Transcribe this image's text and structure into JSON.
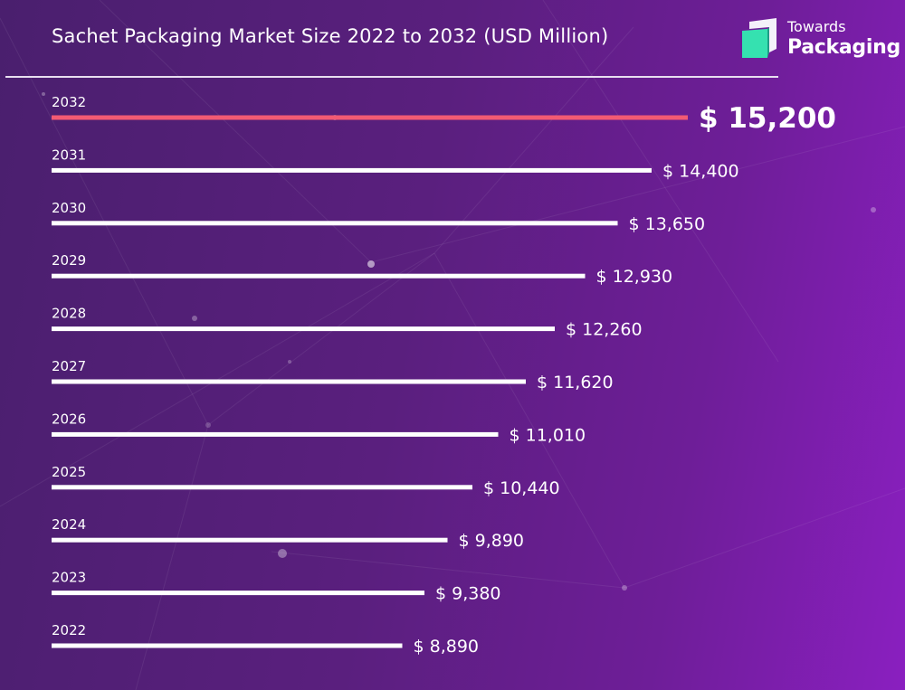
{
  "title": "Sachet Packaging Market Size 2022 to 2032 (USD Million)",
  "logo": {
    "line1": "Towards",
    "line2": "Packaging"
  },
  "colors": {
    "bar": "#ffffff",
    "highlight": "#f25a73",
    "logo_green": "#35e1b0",
    "logo_teal": "#1f9c86"
  },
  "chart_data": {
    "type": "bar",
    "orientation": "horizontal",
    "title": "Sachet Packaging Market Size 2022 to 2032 (USD Million)",
    "categories": [
      "2032",
      "2031",
      "2030",
      "2029",
      "2028",
      "2027",
      "2026",
      "2025",
      "2024",
      "2023",
      "2022"
    ],
    "values": [
      15200,
      14400,
      13650,
      12930,
      12260,
      11620,
      11010,
      10440,
      9890,
      9380,
      8890
    ],
    "value_labels": [
      "$ 15,200",
      "$ 14,400",
      "$ 13,650",
      "$ 12,930",
      "$ 12,260",
      "$ 11,620",
      "$ 11,010",
      "$ 10,440",
      "$ 9,890",
      "$ 9,380",
      "$ 8,890"
    ],
    "highlight_category": "2032",
    "legend": "none",
    "grid": false
  }
}
